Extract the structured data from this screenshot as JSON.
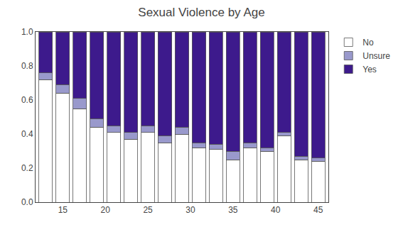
{
  "chart_data": {
    "type": "bar",
    "title": "Sexual Violence by Age",
    "x": [
      13,
      15,
      17,
      19,
      21,
      23,
      25,
      27,
      29,
      31,
      33,
      35,
      37,
      39,
      41,
      43,
      45
    ],
    "series": [
      {
        "name": "No",
        "color": "#ffffff",
        "values": [
          0.72,
          0.64,
          0.55,
          0.44,
          0.41,
          0.37,
          0.41,
          0.35,
          0.4,
          0.32,
          0.31,
          0.25,
          0.32,
          0.3,
          0.39,
          0.25,
          0.24
        ]
      },
      {
        "name": "Unsure",
        "color": "#9999cc",
        "values": [
          0.04,
          0.05,
          0.06,
          0.05,
          0.04,
          0.04,
          0.04,
          0.04,
          0.04,
          0.03,
          0.03,
          0.05,
          0.03,
          0.02,
          0.02,
          0.02,
          0.02
        ]
      },
      {
        "name": "Yes",
        "color": "#3d1a8c",
        "values": [
          0.24,
          0.31,
          0.39,
          0.51,
          0.55,
          0.59,
          0.55,
          0.61,
          0.56,
          0.65,
          0.66,
          0.7,
          0.65,
          0.68,
          0.59,
          0.73,
          0.74
        ]
      }
    ],
    "stacked": true,
    "xlim": [
      11.8,
      46.2
    ],
    "xticks": [
      15,
      20,
      25,
      30,
      35,
      40,
      45
    ],
    "ylim": [
      0.0,
      1.0
    ],
    "yticks": [
      {
        "value": 0,
        "label": "0.0"
      },
      0.2,
      0.4,
      0.6,
      0.8,
      {
        "value": 1,
        "label": "1.0"
      }
    ],
    "grid": false,
    "legend": "right"
  }
}
